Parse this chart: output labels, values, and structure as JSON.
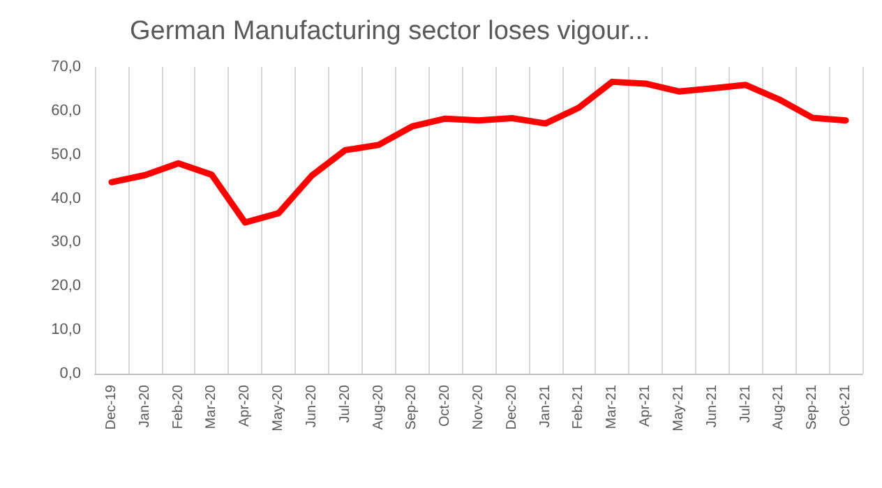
{
  "chart_data": {
    "type": "line",
    "title": "German Manufacturing sector loses vigour...",
    "categories": [
      "Dec-19",
      "Jan-20",
      "Feb-20",
      "Mar-20",
      "Apr-20",
      "May-20",
      "Jun-20",
      "Jul-20",
      "Aug-20",
      "Sep-20",
      "Oct-20",
      "Nov-20",
      "Dec-20",
      "Jan-21",
      "Feb-21",
      "Mar-21",
      "Apr-21",
      "May-21",
      "Jun-21",
      "Jul-21",
      "Aug-21",
      "Sep-21",
      "Oct-21"
    ],
    "series": [
      {
        "color": "#ff0000",
        "values": [
          43.7,
          45.3,
          48.0,
          45.4,
          34.5,
          36.6,
          45.2,
          51.0,
          52.2,
          56.4,
          58.2,
          57.8,
          58.3,
          57.1,
          60.7,
          66.6,
          66.2,
          64.4,
          65.1,
          65.9,
          62.6,
          58.4,
          57.8
        ]
      }
    ],
    "ylim": [
      0,
      70
    ],
    "yticks": [
      {
        "value": 0,
        "label": "0,0"
      },
      {
        "value": 10,
        "label": "10,0"
      },
      {
        "value": 20,
        "label": "20,0"
      },
      {
        "value": 30,
        "label": "30,0"
      },
      {
        "value": 40,
        "label": "40,0"
      },
      {
        "value": 50,
        "label": "50,0"
      },
      {
        "value": 60,
        "label": "60,0"
      },
      {
        "value": 70,
        "label": "70,0"
      }
    ],
    "grid": "x",
    "marker": "none",
    "line_style": "solid"
  }
}
